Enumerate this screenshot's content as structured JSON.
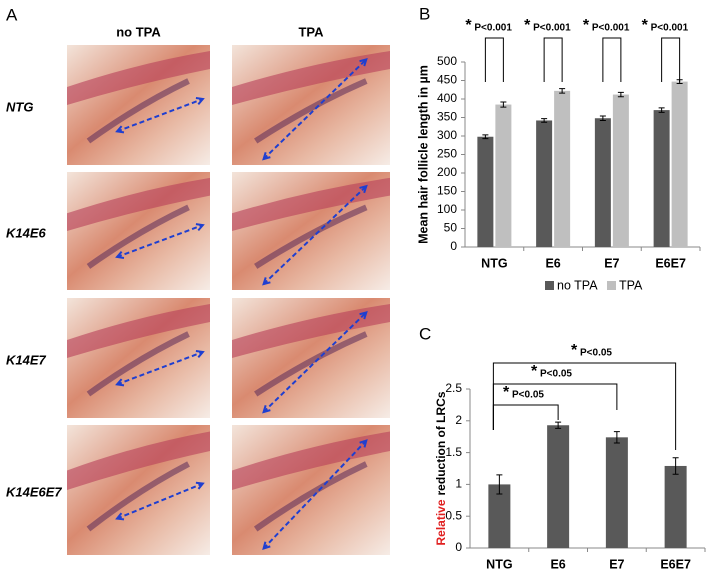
{
  "panel_a": {
    "letter": "A",
    "columns": [
      "no TPA",
      "TPA"
    ],
    "rows": [
      "NTG",
      "K14E6",
      "K14E7",
      "K14E6E7"
    ]
  },
  "chart_data": [
    {
      "type": "bar",
      "letter": "B",
      "y_label": "Mean hair follicle length in µm",
      "categories": [
        "NTG",
        "E6",
        "E7",
        "E6E7"
      ],
      "series": [
        {
          "name": "no TPA",
          "color": "#595959",
          "values": [
            298,
            342,
            348,
            370
          ],
          "errors": [
            5,
            5,
            6,
            6
          ]
        },
        {
          "name": "TPA",
          "color": "#bfbfbf",
          "values": [
            385,
            422,
            412,
            447
          ],
          "errors": [
            7,
            6,
            6,
            5
          ]
        }
      ],
      "ylim": [
        0,
        500
      ],
      "yticks": [
        0,
        50,
        100,
        150,
        200,
        250,
        300,
        350,
        400,
        450,
        500
      ],
      "legend": "bottom",
      "significance": [
        {
          "star": "*",
          "label": "P<0.001"
        },
        {
          "star": "*",
          "label": "P<0.001"
        },
        {
          "star": "*",
          "label": "P<0.001"
        },
        {
          "star": "*",
          "label": "P<0.001"
        }
      ]
    },
    {
      "type": "bar",
      "letter": "C",
      "y_label": {
        "highlight": "Relative",
        "rest": "reduction of LRCs"
      },
      "highlight_color": "#e02020",
      "categories": [
        "NTG",
        "E6",
        "E7",
        "E6E7"
      ],
      "series": [
        {
          "color": "#595959",
          "values": [
            1.0,
            1.93,
            1.74,
            1.29
          ],
          "errors": [
            0.15,
            0.05,
            0.09,
            0.13
          ]
        }
      ],
      "ylim": [
        0,
        2.5
      ],
      "yticks": [
        0,
        0.5,
        1,
        1.5,
        2,
        2.5
      ],
      "significance": [
        {
          "star": "*",
          "label": "P<0.05"
        },
        {
          "star": "*",
          "label": "P<0.05"
        },
        {
          "star": "*",
          "label": "P<0.05"
        }
      ]
    }
  ]
}
